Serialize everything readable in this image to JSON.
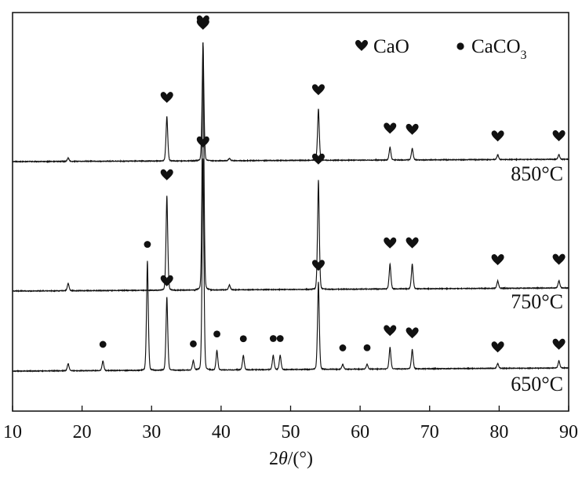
{
  "chart_data": {
    "type": "line",
    "title": "",
    "xlabel": "2θ/(°)",
    "xlabel_parts": {
      "prefix": "2",
      "italic": "θ",
      "suffix": "/(°)"
    },
    "ylabel": "",
    "xlim": [
      10,
      90
    ],
    "x_ticks": [
      10,
      20,
      30,
      40,
      50,
      60,
      70,
      80,
      90
    ],
    "grid": false,
    "legend": {
      "placement": "top-right",
      "entries": [
        {
          "marker": "heart",
          "label": "CaO",
          "label_parts": {
            "main": "CaO",
            "sub": ""
          }
        },
        {
          "marker": "dot",
          "label": "CaCO3",
          "label_parts": {
            "main": "CaCO",
            "sub": "3"
          }
        }
      ]
    },
    "series": [
      {
        "name": "850°C",
        "peaks": [
          {
            "x": 18.0,
            "h": 0.03,
            "phase": "",
            "label": false
          },
          {
            "x": 32.2,
            "h": 0.38,
            "phase": "CaO",
            "label": true
          },
          {
            "x": 37.4,
            "h": 1.0,
            "phase": "CaO",
            "label": true
          },
          {
            "x": 41.2,
            "h": 0.02,
            "phase": "",
            "label": false
          },
          {
            "x": 54.0,
            "h": 0.44,
            "phase": "CaO",
            "label": true
          },
          {
            "x": 64.3,
            "h": 0.11,
            "phase": "CaO",
            "label": true
          },
          {
            "x": 67.5,
            "h": 0.1,
            "phase": "CaO",
            "label": true
          },
          {
            "x": 79.8,
            "h": 0.04,
            "phase": "CaO",
            "label": true
          },
          {
            "x": 88.6,
            "h": 0.04,
            "phase": "CaO",
            "label": true
          }
        ]
      },
      {
        "name": "750°C",
        "peaks": [
          {
            "x": 18.0,
            "h": 0.03,
            "phase": "",
            "label": false
          },
          {
            "x": 32.2,
            "h": 0.38,
            "phase": "CaO",
            "label": true
          },
          {
            "x": 37.4,
            "h": 1.0,
            "phase": "CaO",
            "label": true
          },
          {
            "x": 41.2,
            "h": 0.02,
            "phase": "",
            "label": false
          },
          {
            "x": 54.0,
            "h": 0.44,
            "phase": "CaO",
            "label": true
          },
          {
            "x": 64.3,
            "h": 0.1,
            "phase": "CaO",
            "label": true
          },
          {
            "x": 67.5,
            "h": 0.1,
            "phase": "CaO",
            "label": true
          },
          {
            "x": 79.8,
            "h": 0.03,
            "phase": "CaO",
            "label": true
          },
          {
            "x": 88.6,
            "h": 0.03,
            "phase": "CaO",
            "label": true
          }
        ]
      },
      {
        "name": "650°C",
        "peaks": [
          {
            "x": 18.0,
            "h": 0.03,
            "phase": "",
            "label": false
          },
          {
            "x": 23.0,
            "h": 0.04,
            "phase": "CaCO3",
            "label": true
          },
          {
            "x": 29.4,
            "h": 0.45,
            "phase": "CaCO3",
            "label": true
          },
          {
            "x": 32.2,
            "h": 0.3,
            "phase": "CaO",
            "label": true
          },
          {
            "x": 36.0,
            "h": 0.04,
            "phase": "CaCO3",
            "label": true
          },
          {
            "x": 37.4,
            "h": 0.87,
            "phase": "CaO",
            "label": true
          },
          {
            "x": 39.4,
            "h": 0.08,
            "phase": "CaCO3",
            "label": true
          },
          {
            "x": 43.2,
            "h": 0.06,
            "phase": "CaCO3",
            "label": true
          },
          {
            "x": 47.5,
            "h": 0.06,
            "phase": "CaCO3",
            "label": true
          },
          {
            "x": 48.5,
            "h": 0.06,
            "phase": "CaCO3",
            "label": true
          },
          {
            "x": 54.0,
            "h": 0.36,
            "phase": "CaO",
            "label": true
          },
          {
            "x": 57.5,
            "h": 0.02,
            "phase": "CaCO3",
            "label": true
          },
          {
            "x": 61.0,
            "h": 0.02,
            "phase": "CaCO3",
            "label": true
          },
          {
            "x": 64.3,
            "h": 0.09,
            "phase": "CaO",
            "label": true
          },
          {
            "x": 67.5,
            "h": 0.08,
            "phase": "CaO",
            "label": true
          },
          {
            "x": 79.8,
            "h": 0.02,
            "phase": "CaO",
            "label": true
          },
          {
            "x": 88.6,
            "h": 0.03,
            "phase": "CaO",
            "label": true
          }
        ]
      }
    ]
  }
}
